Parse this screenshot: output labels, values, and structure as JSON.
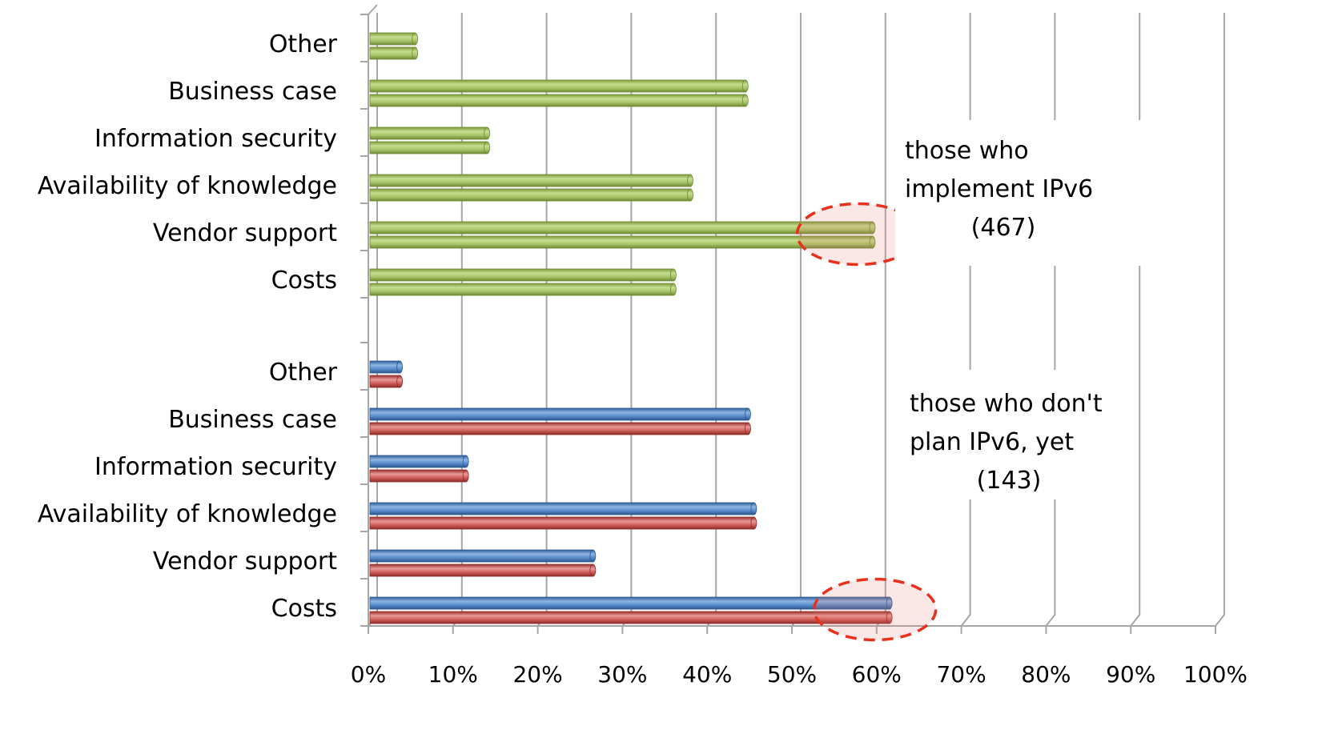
{
  "chart_data": {
    "type": "bar",
    "orientation": "horizontal",
    "x_ticks": [
      "0%",
      "10%",
      "20%",
      "30%",
      "40%",
      "50%",
      "60%",
      "70%",
      "80%",
      "90%",
      "100%"
    ],
    "xlim": [
      0,
      100
    ],
    "grid": true,
    "groups": [
      {
        "categories": [
          "Costs",
          "Vendor support",
          "Availability of knowledge",
          "Information security",
          "Business case",
          "Other"
        ],
        "series": [
          {
            "color": "#9bbb59",
            "values": [
              36,
              59.5,
              38,
              14,
              44.5,
              5.5
            ]
          },
          {
            "color": "#9bbb59",
            "values": [
              36,
              59.5,
              38,
              14,
              44.5,
              5.5
            ]
          }
        ],
        "annotation": [
          "those who",
          "implement IPv6",
          "(467)"
        ],
        "highlight": "Vendor support"
      },
      {
        "categories": [
          "Costs",
          "Vendor support",
          "Availability of knowledge",
          "Information security",
          "Business case",
          "Other"
        ],
        "series": [
          {
            "color": "#4f81bd",
            "values": [
              61.5,
              26.5,
              45.5,
              11.5,
              44.8,
              3.7
            ]
          },
          {
            "color": "#c0504d",
            "values": [
              61.5,
              26.5,
              45.5,
              11.5,
              44.8,
              3.7
            ]
          }
        ],
        "annotation": [
          "those who don't",
          "plan IPv6, yet",
          "(143)"
        ],
        "highlight": "Costs"
      }
    ],
    "highlight_color": "#e8301c"
  }
}
